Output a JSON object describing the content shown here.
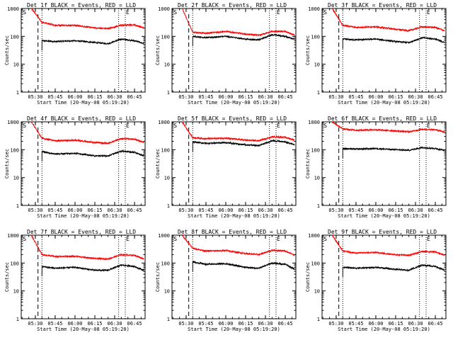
{
  "colors": {
    "events": "#000000",
    "lld": "#ff0000",
    "axis": "#000000",
    "background": "#ffffff"
  },
  "xticks": [
    "05:30",
    "05:45",
    "06:00",
    "06:15",
    "06:30",
    "06:45"
  ],
  "yticks": [
    "1",
    "10",
    "100",
    "1000"
  ],
  "xlabel": "Start Time (20-May-08 05:19:20)",
  "ylabel": "Counts/sec",
  "marker_s": "S",
  "marker_e": "E",
  "chart_data": [
    {
      "type": "line",
      "title": "Det 1f BLACK = Events, RED = LLD",
      "xlabel": "Start Time (20-May-08 05:19:20)",
      "ylabel": "Counts/sec",
      "ylim": [
        1,
        1000
      ],
      "yscale": "log",
      "xlim": [
        "05:19:20",
        "06:53"
      ],
      "x": [
        "05:27",
        "05:35",
        "05:45",
        "06:00",
        "06:15",
        "06:25",
        "06:35",
        "06:45",
        "06:52"
      ],
      "series": [
        {
          "name": "BLACK = Events",
          "values": [
            null,
            70,
            65,
            70,
            60,
            55,
            80,
            70,
            55
          ]
        },
        {
          "name": "RED = LLD",
          "values": [
            1000,
            320,
            250,
            250,
            200,
            190,
            250,
            260,
            200
          ]
        }
      ],
      "markers": {
        "S": "05:20",
        "E": "06:38"
      }
    },
    {
      "type": "line",
      "title": "Det 2f BLACK = Events, RED = LLD",
      "xlabel": "Start Time (20-May-08 05:19:20)",
      "ylabel": "Counts/sec",
      "ylim": [
        1,
        1000
      ],
      "yscale": "log",
      "xlim": [
        "05:19:20",
        "06:53"
      ],
      "x": [
        "05:27",
        "05:35",
        "05:45",
        "06:00",
        "06:15",
        "06:25",
        "06:35",
        "06:45",
        "06:52"
      ],
      "series": [
        {
          "name": "BLACK = Events",
          "values": [
            null,
            100,
            90,
            100,
            80,
            75,
            115,
            100,
            80
          ]
        },
        {
          "name": "RED = LLD",
          "values": [
            1000,
            140,
            130,
            150,
            120,
            110,
            150,
            150,
            110
          ]
        }
      ],
      "markers": {
        "S": "05:20",
        "E": "06:38"
      }
    },
    {
      "type": "line",
      "title": "Det 3f BLACK = Events, RED = LLD",
      "xlabel": "Start Time (20-May-08 05:19:20)",
      "ylabel": "Counts/sec",
      "ylim": [
        1,
        1000
      ],
      "yscale": "log",
      "xlim": [
        "05:19:20",
        "06:53"
      ],
      "x": [
        "05:27",
        "05:35",
        "05:45",
        "06:00",
        "06:15",
        "06:25",
        "06:35",
        "06:45",
        "06:52"
      ],
      "series": [
        {
          "name": "BLACK = Events",
          "values": [
            null,
            80,
            75,
            80,
            65,
            60,
            90,
            80,
            60
          ]
        },
        {
          "name": "RED = LLD",
          "values": [
            1000,
            250,
            210,
            220,
            180,
            160,
            220,
            210,
            160
          ]
        }
      ],
      "markers": {
        "S": "05:20",
        "E": "06:38"
      }
    },
    {
      "type": "line",
      "title": "Det 4f BLACK = Events, RED = LLD",
      "xlabel": "Start Time (20-May-08 05:19:20)",
      "ylabel": "Counts/sec",
      "ylim": [
        1,
        1000
      ],
      "yscale": "log",
      "xlim": [
        "05:19:20",
        "06:53"
      ],
      "x": [
        "05:27",
        "05:35",
        "05:45",
        "06:00",
        "06:15",
        "06:25",
        "06:35",
        "06:45",
        "06:52"
      ],
      "series": [
        {
          "name": "BLACK = Events",
          "values": [
            null,
            85,
            70,
            75,
            60,
            60,
            90,
            80,
            60
          ]
        },
        {
          "name": "RED = LLD",
          "values": [
            1000,
            260,
            210,
            220,
            180,
            170,
            250,
            240,
            180
          ]
        }
      ],
      "markers": {
        "S": "05:20",
        "E": "06:38"
      }
    },
    {
      "type": "line",
      "title": "Det 5f BLACK = Events, RED = LLD",
      "xlabel": "Start Time (20-May-08 05:19:20)",
      "ylabel": "Counts/sec",
      "ylim": [
        1,
        1000
      ],
      "yscale": "log",
      "xlim": [
        "05:19:20",
        "06:53"
      ],
      "x": [
        "05:27",
        "05:35",
        "05:45",
        "06:00",
        "06:15",
        "06:25",
        "06:35",
        "06:45",
        "06:52"
      ],
      "series": [
        {
          "name": "BLACK = Events",
          "values": [
            null,
            190,
            170,
            180,
            150,
            140,
            210,
            190,
            150
          ]
        },
        {
          "name": "RED = LLD",
          "values": [
            1000,
            270,
            250,
            260,
            220,
            210,
            290,
            280,
            220
          ]
        }
      ],
      "markers": {
        "S": "05:20",
        "E": "06:38"
      }
    },
    {
      "type": "line",
      "title": "Det 6f BLACK = Events, RED = LLD",
      "xlabel": "Start Time (20-May-08 05:19:20)",
      "ylabel": "Counts/sec",
      "ylim": [
        1,
        1000
      ],
      "yscale": "log",
      "xlim": [
        "05:19:20",
        "06:53"
      ],
      "x": [
        "05:27",
        "05:35",
        "05:45",
        "06:00",
        "06:15",
        "06:25",
        "06:35",
        "06:45",
        "06:52"
      ],
      "series": [
        {
          "name": "BLACK = Events",
          "values": [
            null,
            110,
            105,
            110,
            100,
            95,
            120,
            110,
            95
          ]
        },
        {
          "name": "RED = LLD",
          "values": [
            1000,
            560,
            500,
            520,
            470,
            440,
            540,
            520,
            430
          ]
        }
      ],
      "markers": {
        "S": "05:20",
        "E": "06:38"
      }
    },
    {
      "type": "line",
      "title": "Det 7f BLACK = Events, RED = LLD",
      "xlabel": "Start Time (20-May-08 05:19:20)",
      "ylabel": "Counts/sec",
      "ylim": [
        1,
        1000
      ],
      "yscale": "log",
      "xlim": [
        "05:19:20",
        "06:53"
      ],
      "x": [
        "05:27",
        "05:35",
        "05:45",
        "06:00",
        "06:15",
        "06:25",
        "06:35",
        "06:45",
        "06:52"
      ],
      "series": [
        {
          "name": "BLACK = Events",
          "values": [
            null,
            75,
            65,
            70,
            55,
            55,
            85,
            75,
            55
          ]
        },
        {
          "name": "RED = LLD",
          "values": [
            1000,
            200,
            170,
            175,
            145,
            140,
            200,
            190,
            140
          ]
        }
      ],
      "markers": {
        "S": "05:20",
        "E": "06:38"
      }
    },
    {
      "type": "line",
      "title": "Det 8f BLACK = Events, RED = LLD",
      "xlabel": "Start Time (20-May-08 05:19:20)",
      "ylabel": "Counts/sec",
      "ylim": [
        1,
        1000
      ],
      "yscale": "log",
      "xlim": [
        "05:19:20",
        "06:53"
      ],
      "x": [
        "05:27",
        "05:35",
        "05:45",
        "06:00",
        "06:15",
        "06:25",
        "06:35",
        "06:45",
        "06:52"
      ],
      "series": [
        {
          "name": "BLACK = Events",
          "values": [
            null,
            110,
            90,
            95,
            70,
            65,
            100,
            90,
            60
          ]
        },
        {
          "name": "RED = LLD",
          "values": [
            1000,
            340,
            270,
            280,
            220,
            200,
            290,
            270,
            190
          ]
        }
      ],
      "markers": {
        "S": "05:20",
        "E": "06:38"
      }
    },
    {
      "type": "line",
      "title": "Det 9f BLACK = Events, RED = LLD",
      "xlabel": "Start Time (20-May-08 05:19:20)",
      "ylabel": "Counts/sec",
      "ylim": [
        1,
        1000
      ],
      "yscale": "log",
      "xlim": [
        "05:19:20",
        "06:53"
      ],
      "x": [
        "05:27",
        "05:35",
        "05:45",
        "06:00",
        "06:15",
        "06:25",
        "06:35",
        "06:45",
        "06:52"
      ],
      "series": [
        {
          "name": "BLACK = Events",
          "values": [
            null,
            70,
            65,
            70,
            60,
            55,
            85,
            75,
            55
          ]
        },
        {
          "name": "RED = LLD",
          "values": [
            1000,
            270,
            230,
            240,
            200,
            190,
            260,
            250,
            190
          ]
        }
      ],
      "markers": {
        "S": "05:20",
        "E": "06:38"
      }
    }
  ]
}
